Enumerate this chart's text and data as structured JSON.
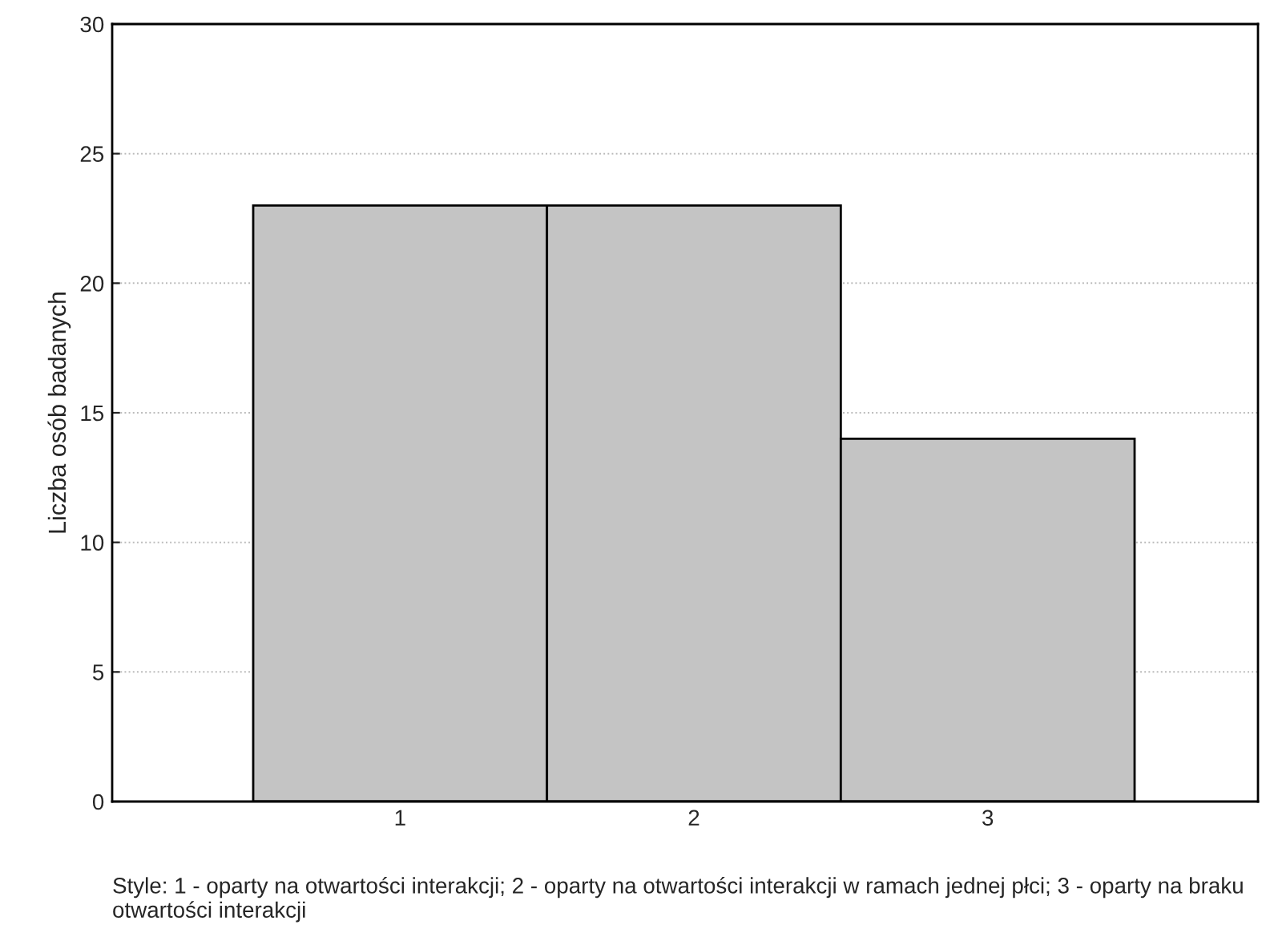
{
  "chart_data": {
    "type": "bar",
    "ylabel": "Liczba osób badanych",
    "categories": [
      "1",
      "2",
      "3"
    ],
    "values": [
      23,
      23,
      14
    ],
    "color": "#c4c4c4",
    "ylim": [
      0,
      30
    ],
    "yticks": [
      0,
      5,
      10,
      15,
      20,
      25,
      30
    ],
    "grid": "y",
    "annotations": [
      "Style: 1 - oparty na otwartości interakcji; 2 - oparty na otwartości interakcji w ramach jednej płci; 3 - oparty na braku otwartości interakcji"
    ]
  }
}
